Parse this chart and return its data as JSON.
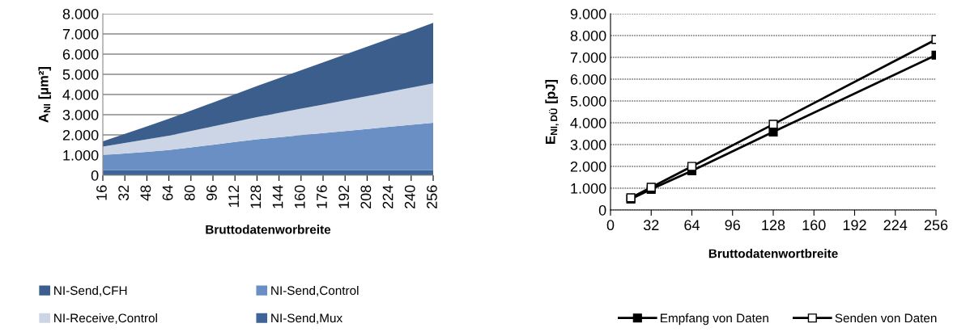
{
  "chart_data": [
    {
      "type": "area",
      "stacked": true,
      "xlabel": "Bruttodatenworbreite",
      "ylabel": "A$_{NI}$ [µm²]",
      "categories": [
        "16",
        "32",
        "48",
        "64",
        "80",
        "96",
        "112",
        "128",
        "144",
        "160",
        "176",
        "192",
        "208",
        "224",
        "240",
        "256"
      ],
      "series": [
        {
          "name": "NI-Send,Mux",
          "color": "#3f6597",
          "values": [
            250,
            250,
            250,
            250,
            250,
            250,
            250,
            250,
            250,
            250,
            250,
            250,
            250,
            250,
            250,
            250
          ]
        },
        {
          "name": "NI-Send,Control",
          "color": "#6a8fc4",
          "values": [
            750,
            830,
            910,
            1000,
            1130,
            1260,
            1400,
            1530,
            1630,
            1740,
            1840,
            1940,
            2040,
            2150,
            2250,
            2350
          ]
        },
        {
          "name": "NI-Receive,Control",
          "color": "#ccd5e5",
          "values": [
            420,
            520,
            620,
            710,
            810,
            910,
            1000,
            1100,
            1210,
            1310,
            1410,
            1520,
            1630,
            1730,
            1840,
            1950
          ]
        },
        {
          "name": "NI-Send,CFH",
          "color": "#3b5e8c",
          "values": [
            260,
            450,
            640,
            840,
            1010,
            1180,
            1360,
            1540,
            1720,
            1900,
            2090,
            2270,
            2450,
            2630,
            2810,
            3000
          ]
        }
      ],
      "ylim": [
        0,
        8000
      ],
      "yticks": [
        0,
        {
          "value": 1000,
          "label": "1.000"
        },
        {
          "value": 2000,
          "label": "2.000"
        },
        {
          "value": 3000,
          "label": "3.000"
        },
        {
          "value": 4000,
          "label": "4.000"
        },
        {
          "value": 5000,
          "label": "5.000"
        },
        {
          "value": 6000,
          "label": "6.000"
        },
        {
          "value": 7000,
          "label": "7.000"
        },
        {
          "value": 8000,
          "label": "8.000"
        }
      ],
      "grid": "y",
      "legend": "bottom"
    },
    {
      "type": "line",
      "xlabel": "Bruttodatenwortbreite",
      "ylabel": "E$_{NI,DÜ}$ [pJ]",
      "x": [
        16,
        32,
        64,
        128,
        256
      ],
      "series": [
        {
          "name": "Empfang von Daten",
          "color": "#000000",
          "values": [
            500,
            950,
            1800,
            3580,
            7100
          ]
        },
        {
          "name": "Senden von Daten",
          "color": "#000000",
          "values": [
            560,
            1040,
            2000,
            3930,
            7820
          ]
        }
      ],
      "xlim": [
        0,
        256
      ],
      "xticks": [
        0,
        32,
        64,
        96,
        128,
        160,
        192,
        224,
        256
      ],
      "ylim": [
        0,
        9000
      ],
      "yticks": [
        0,
        {
          "value": 1000,
          "label": "1.000"
        },
        {
          "value": 2000,
          "label": "2.000"
        },
        {
          "value": 3000,
          "label": "3.000"
        },
        {
          "value": 4000,
          "label": "4.000"
        },
        {
          "value": 5000,
          "label": "5.000"
        },
        {
          "value": 6000,
          "label": "6.000"
        },
        {
          "value": 7000,
          "label": "7.000"
        },
        {
          "value": 8000,
          "label": "8.000"
        },
        {
          "value": 9000,
          "label": "9.000"
        }
      ],
      "grid": "y",
      "legend": "bottom",
      "marker": "square",
      "line_style": "solid"
    }
  ]
}
